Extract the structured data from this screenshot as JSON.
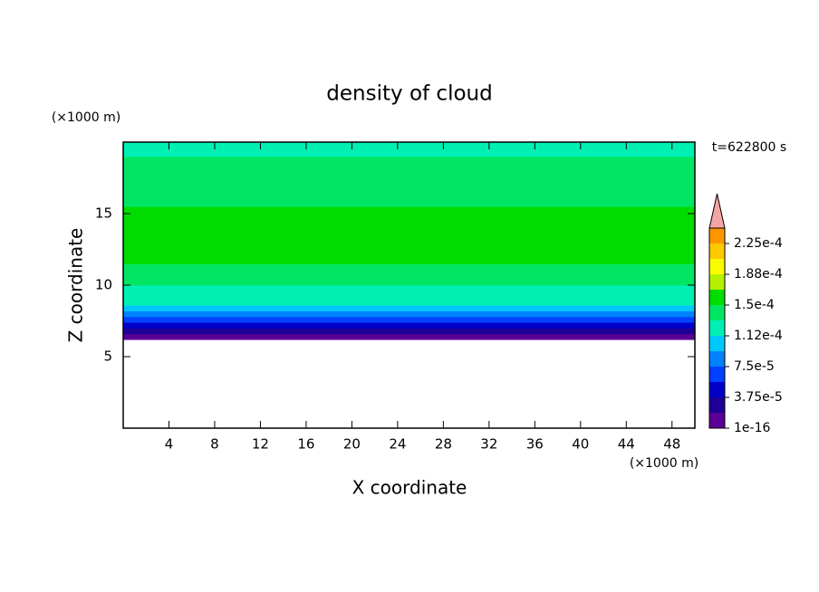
{
  "chart_data": {
    "type": "contour",
    "title": "density of cloud",
    "time_label": "t=622800 s",
    "xlabel": "X coordinate",
    "ylabel": "Z coordinate",
    "x_unit": "(×1000 m)",
    "y_unit": "(×1000 m)",
    "xlim": [
      0,
      50
    ],
    "xticks": [
      4,
      8,
      12,
      16,
      20,
      24,
      28,
      32,
      36,
      40,
      44,
      48
    ],
    "ylim": [
      0,
      20
    ],
    "yticks": [
      5,
      10,
      15
    ],
    "z": [
      6.2,
      6.6,
      7.0,
      7.4,
      7.8,
      8.2,
      8.6,
      9.0,
      9.5,
      10.0,
      10.5,
      11.0,
      11.5,
      12.0,
      12.5,
      13.0,
      13.5,
      14.0,
      14.5,
      15.0,
      15.5,
      16.0,
      16.5,
      17.0,
      17.5,
      18.0,
      18.5,
      19.0,
      19.5
    ],
    "values": [
      1e-05,
      3e-05,
      5e-05,
      7e-05,
      9e-05,
      0.000105,
      0.000115,
      0.000122,
      0.00013,
      0.000135,
      0.000145,
      0.000148,
      0.000152,
      0.000155,
      0.00016,
      0.000162,
      0.000162,
      0.00016,
      0.000155,
      0.00015,
      0.000148,
      0.000146,
      0.000145,
      0.000142,
      0.000142,
      0.00014,
      0.000135,
      0.00013,
      0.000125
    ],
    "colorbar": {
      "levels": [
        1e-16,
        1.875e-05,
        3.75e-05,
        5.625e-05,
        7.5e-05,
        9.375e-05,
        0.0001125,
        0.00013125,
        0.00015,
        0.00016875,
        0.0001875,
        0.00020625,
        0.000225,
        0.00024375
      ],
      "colors": [
        "#5a0096",
        "#1e0096",
        "#0000c8",
        "#0040ff",
        "#0082ff",
        "#00c8ff",
        "#00f0b4",
        "#00e664",
        "#00dc00",
        "#b4f000",
        "#fafa00",
        "#ffc800",
        "#ff9600"
      ],
      "extend_color": "#f4a4a4",
      "ticks": [
        {
          "value": 1e-16,
          "label": "1e-16"
        },
        {
          "value": 3.75e-05,
          "label": "3.75e-5"
        },
        {
          "value": 7.5e-05,
          "label": "7.5e-5"
        },
        {
          "value": 0.0001125,
          "label": "1.12e-4"
        },
        {
          "value": 0.00015,
          "label": "1.5e-4"
        },
        {
          "value": 0.0001875,
          "label": "1.88e-4"
        },
        {
          "value": 0.000225,
          "label": "2.25e-4"
        }
      ]
    }
  }
}
